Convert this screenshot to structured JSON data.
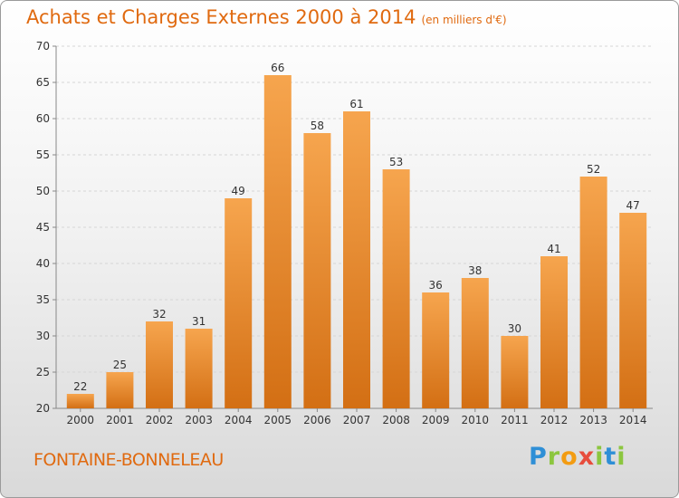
{
  "title": "Achats et Charges Externes 2000 à 2014",
  "subtitle": "(en milliers d'€)",
  "commune": "FONTAINE-BONNELEAU",
  "logo": {
    "letters": [
      "P",
      "r",
      "o",
      "x",
      "i",
      "t",
      "i"
    ],
    "colors": [
      "#2f8fd6",
      "#8cc63f",
      "#f39c12",
      "#e74c3c",
      "#8cc63f",
      "#2f8fd6",
      "#8cc63f"
    ]
  },
  "colors": {
    "bar_top": "#f6a54e",
    "bar_bottom": "#d36f14",
    "title": "#e06a10"
  },
  "chart_data": {
    "type": "bar",
    "categories": [
      "2000",
      "2001",
      "2002",
      "2003",
      "2004",
      "2005",
      "2006",
      "2007",
      "2008",
      "2009",
      "2010",
      "2011",
      "2012",
      "2013",
      "2014"
    ],
    "values": [
      22,
      25,
      32,
      31,
      49,
      66,
      58,
      61,
      53,
      36,
      38,
      30,
      41,
      52,
      47
    ],
    "ylim": [
      20,
      70
    ],
    "yticks": [
      20,
      25,
      30,
      35,
      40,
      45,
      50,
      55,
      60,
      65,
      70
    ],
    "grid": true
  }
}
